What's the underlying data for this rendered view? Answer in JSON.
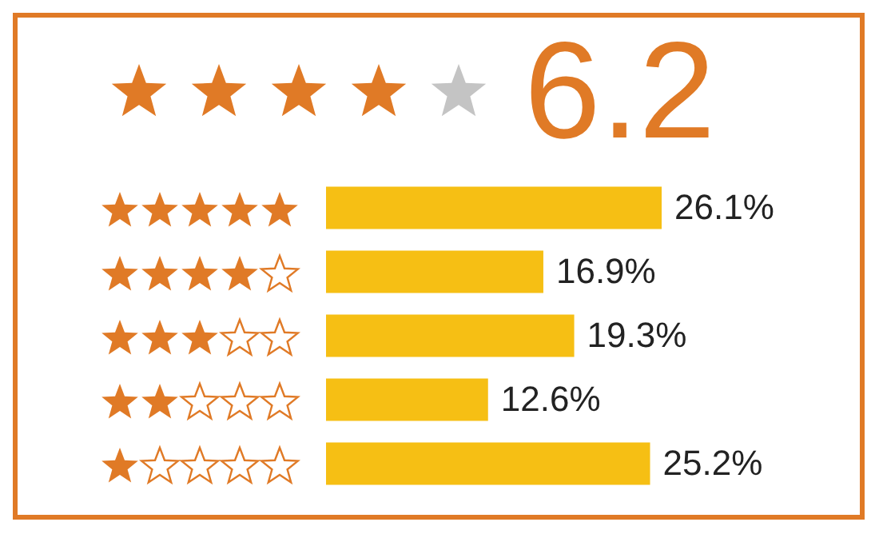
{
  "chart_data": {
    "type": "bar",
    "orientation": "horizontal",
    "title": "6.2",
    "categories": [
      null,
      null,
      null,
      null,
      null
    ],
    "values": [
      26.1,
      16.9,
      19.3,
      12.6,
      25.2
    ],
    "value_labels": [
      "26.1%",
      "16.9%",
      "19.3%",
      "12.6%",
      "25.2%"
    ],
    "color": "#f6bf14",
    "legend": false,
    "tick_labels": false
  }
}
